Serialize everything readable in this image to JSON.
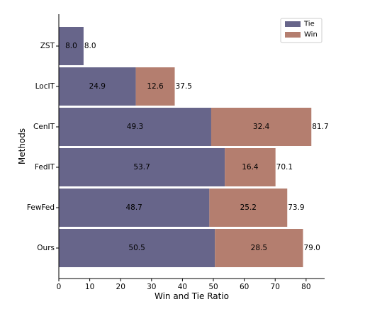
{
  "chart_data": {
    "type": "bar",
    "orientation": "horizontal",
    "stacked": true,
    "categories": [
      "ZST",
      "LocIT",
      "CenIT",
      "FedIT",
      "FewFed",
      "Ours"
    ],
    "series": [
      {
        "name": "Tie",
        "values": [
          8.0,
          24.9,
          49.3,
          53.7,
          48.7,
          50.5
        ],
        "color": "#67658a"
      },
      {
        "name": "Win",
        "values": [
          0.0,
          12.6,
          32.4,
          16.4,
          25.2,
          28.5
        ],
        "color": "#b47e6f"
      }
    ],
    "segment_labels": {
      "Tie": [
        "8.0",
        "24.9",
        "49.3",
        "53.7",
        "48.7",
        "50.5"
      ],
      "Win": [
        "",
        "12.6",
        "32.4",
        "16.4",
        "25.2",
        "28.5"
      ]
    },
    "totals": [
      "8.0",
      "37.5",
      "81.7",
      "70.1",
      "73.9",
      "79.0"
    ],
    "total_values": [
      8.0,
      37.5,
      81.7,
      70.1,
      73.9,
      79.0
    ],
    "xlabel": "Win and Tie Ratio",
    "ylabel": "Methods",
    "xlim": [
      0,
      86
    ],
    "xticks": [
      0,
      10,
      20,
      30,
      40,
      50,
      60,
      70,
      80
    ],
    "legend_position": "top-right",
    "grid": false
  }
}
